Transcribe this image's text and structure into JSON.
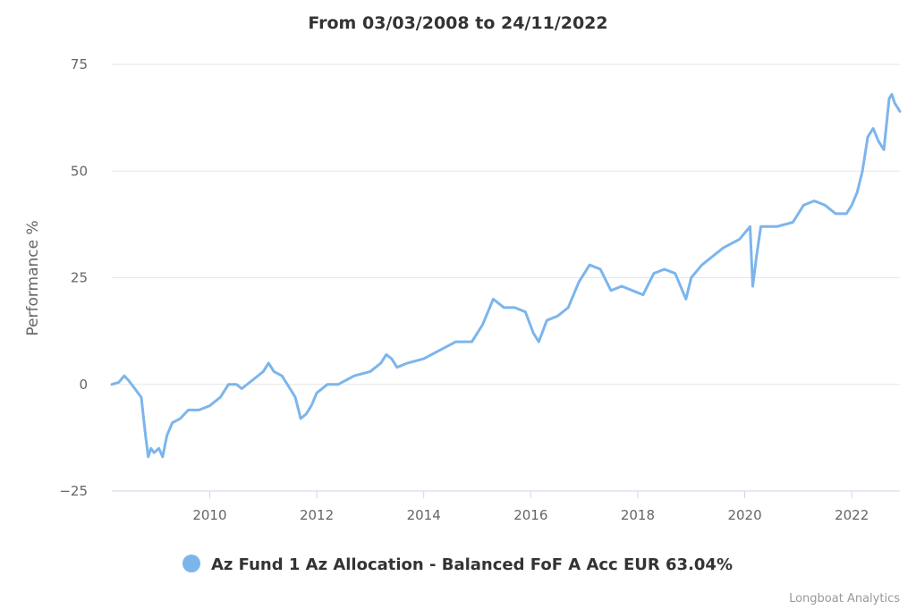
{
  "chart_data": {
    "type": "line",
    "title": "From 03/03/2008 to 24/11/2022",
    "ylabel": "Performance %",
    "xlabel": "",
    "xlim": [
      2008.17,
      2022.9
    ],
    "ylim": [
      -25,
      75
    ],
    "yticks": [
      -25,
      0,
      25,
      50,
      75
    ],
    "xticks": [
      2010,
      2012,
      2014,
      2016,
      2018,
      2020,
      2022
    ],
    "grid": true,
    "legend_position": "bottom-center",
    "credit": "Longboat Analytics",
    "series": [
      {
        "name": "Az Fund 1 Az Allocation - Balanced FoF A Acc EUR 63.04%",
        "color": "#7cb5ec",
        "x": [
          2008.17,
          2008.3,
          2008.4,
          2008.48,
          2008.6,
          2008.72,
          2008.8,
          2008.85,
          2008.9,
          2008.96,
          2009.05,
          2009.12,
          2009.2,
          2009.3,
          2009.45,
          2009.6,
          2009.8,
          2010.0,
          2010.2,
          2010.35,
          2010.5,
          2010.6,
          2010.8,
          2011.0,
          2011.1,
          2011.2,
          2011.35,
          2011.5,
          2011.6,
          2011.7,
          2011.8,
          2011.9,
          2012.0,
          2012.2,
          2012.4,
          2012.7,
          2013.0,
          2013.2,
          2013.3,
          2013.4,
          2013.5,
          2013.7,
          2014.0,
          2014.3,
          2014.6,
          2014.9,
          2015.1,
          2015.3,
          2015.5,
          2015.7,
          2015.9,
          2016.05,
          2016.15,
          2016.3,
          2016.5,
          2016.7,
          2016.9,
          2017.1,
          2017.3,
          2017.5,
          2017.7,
          2017.9,
          2018.1,
          2018.3,
          2018.5,
          2018.7,
          2018.9,
          2019.0,
          2019.2,
          2019.4,
          2019.6,
          2019.9,
          2020.1,
          2020.15,
          2020.22,
          2020.3,
          2020.4,
          2020.6,
          2020.9,
          2021.1,
          2021.3,
          2021.5,
          2021.7,
          2021.9,
          2022.0,
          2022.1,
          2022.2,
          2022.3,
          2022.4,
          2022.5,
          2022.6,
          2022.7,
          2022.75,
          2022.8,
          2022.9
        ],
        "y": [
          0,
          0.5,
          2,
          1,
          -1,
          -3,
          -12,
          -17,
          -15,
          -16,
          -15,
          -17,
          -12,
          -9,
          -8,
          -6,
          -6,
          -5,
          -3,
          0,
          0,
          -1,
          1,
          3,
          5,
          3,
          2,
          -1,
          -3,
          -8,
          -7,
          -5,
          -2,
          0,
          0,
          2,
          3,
          5,
          7,
          6,
          4,
          5,
          6,
          8,
          10,
          10,
          14,
          20,
          18,
          18,
          17,
          12,
          10,
          15,
          16,
          18,
          24,
          28,
          27,
          22,
          23,
          22,
          21,
          26,
          27,
          26,
          20,
          25,
          28,
          30,
          32,
          34,
          37,
          23,
          30,
          37,
          37,
          37,
          38,
          42,
          43,
          42,
          40,
          40,
          42,
          45,
          50,
          58,
          60,
          57,
          55,
          67,
          68,
          66,
          64
        ]
      }
    ]
  }
}
